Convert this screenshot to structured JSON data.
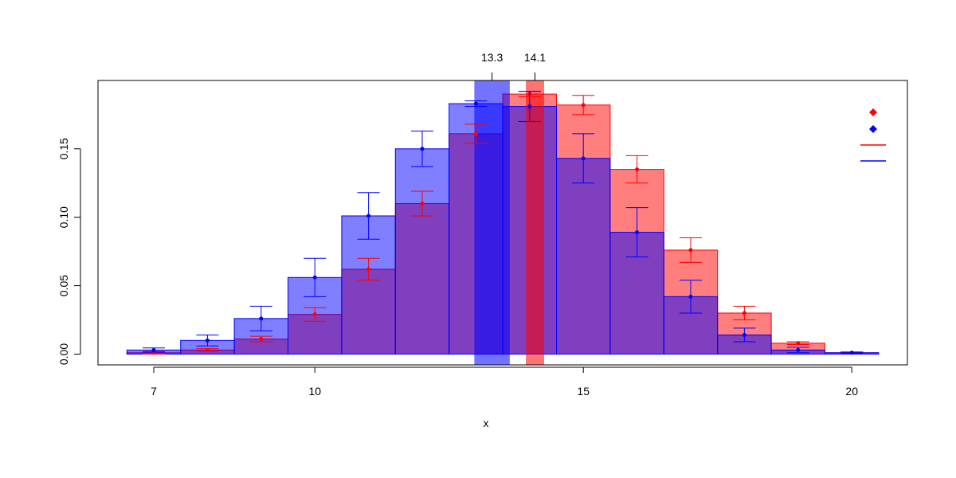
{
  "chart_data": {
    "type": "bar",
    "xlabel": "x",
    "ylabel": "",
    "xlim": [
      6.5,
      20.5
    ],
    "ylim": [
      0,
      0.2
    ],
    "x_ticks": [
      7,
      10,
      15,
      20
    ],
    "y_ticks": [
      "0.00",
      "0.05",
      "0.10",
      "0.15"
    ],
    "x": [
      7,
      8,
      9,
      10,
      11,
      12,
      13,
      14,
      15,
      16,
      17,
      18,
      19,
      20
    ],
    "series": [
      {
        "color": "#ff0000",
        "values": [
          0.001,
          0.003,
          0.011,
          0.029,
          0.062,
          0.11,
          0.161,
          0.19,
          0.182,
          0.135,
          0.076,
          0.03,
          0.008,
          0.001
        ],
        "err": [
          0.001,
          0.001,
          0.002,
          0.005,
          0.008,
          0.009,
          0.007,
          0.002,
          0.007,
          0.01,
          0.009,
          0.005,
          0.001,
          0.0005
        ],
        "mean": 14.1,
        "mean_label": "14.1"
      },
      {
        "color": "#0000ff",
        "values": [
          0.003,
          0.01,
          0.026,
          0.056,
          0.101,
          0.15,
          0.183,
          0.181,
          0.143,
          0.089,
          0.042,
          0.014,
          0.003,
          0.001
        ],
        "err": [
          0.0015,
          0.004,
          0.009,
          0.014,
          0.017,
          0.013,
          0.002,
          0.011,
          0.018,
          0.018,
          0.012,
          0.005,
          0.002,
          0.0005
        ],
        "mean": 13.3,
        "mean_label": "13.3"
      }
    ],
    "legend": "top-right",
    "grid": false
  }
}
